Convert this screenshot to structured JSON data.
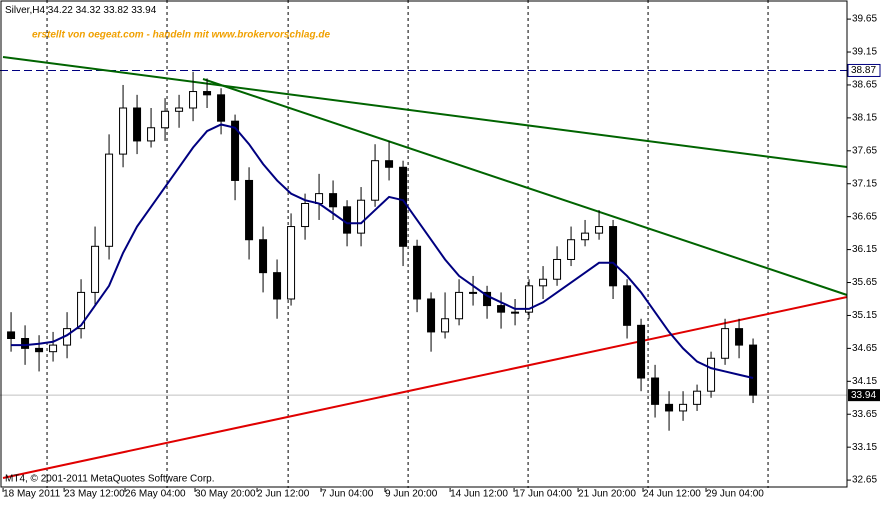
{
  "chart_data": {
    "type": "candlestick",
    "symbol": "Silver,H4",
    "header_ohlc": [
      34.22,
      34.32,
      33.82,
      33.94
    ],
    "annotation": "erstellt von oegeat.com - handeln mit www.brokervorschlag.de",
    "copyright": "MT4, © 2001-2011 MetaQuotes Software Corp.",
    "open": [
      34.9,
      34.8,
      34.65,
      34.6,
      34.7,
      34.95,
      35.5,
      36.2,
      37.6,
      38.3,
      37.8,
      38.0,
      38.25,
      38.3,
      38.55,
      38.5,
      38.1,
      37.2,
      36.3,
      35.8,
      35.4,
      36.5,
      36.85,
      37.0,
      36.8,
      36.4,
      36.9,
      37.5,
      37.4,
      36.2,
      35.4,
      34.9,
      35.1,
      35.5,
      35.5,
      35.3,
      35.2,
      35.2,
      35.6,
      35.7,
      36.0,
      36.3,
      36.4,
      36.5,
      35.6,
      35.0,
      34.2,
      33.8,
      33.7,
      33.8,
      34.0,
      34.5,
      34.95,
      34.7
    ],
    "high": [
      35.2,
      35.0,
      34.85,
      34.9,
      35.2,
      35.7,
      36.5,
      37.9,
      38.65,
      38.5,
      38.3,
      38.45,
      38.5,
      38.85,
      38.75,
      38.6,
      38.2,
      37.4,
      36.5,
      36.0,
      36.7,
      37.0,
      37.3,
      37.2,
      36.9,
      37.1,
      37.75,
      37.8,
      37.5,
      36.3,
      35.5,
      35.5,
      35.7,
      35.75,
      35.6,
      35.5,
      35.4,
      35.7,
      35.9,
      36.2,
      36.5,
      36.6,
      36.75,
      36.6,
      35.7,
      35.1,
      34.4,
      34.0,
      34.0,
      34.1,
      34.6,
      35.1,
      35.1,
      34.8
    ],
    "low": [
      34.6,
      34.4,
      34.3,
      34.45,
      34.5,
      34.8,
      35.3,
      36.0,
      37.4,
      37.6,
      37.7,
      37.8,
      38.0,
      38.1,
      38.3,
      37.9,
      36.9,
      36.0,
      35.5,
      35.1,
      35.3,
      36.3,
      36.6,
      36.6,
      36.2,
      36.2,
      36.8,
      37.2,
      35.9,
      35.2,
      34.6,
      34.8,
      35.0,
      35.3,
      35.1,
      34.95,
      35.0,
      35.1,
      35.4,
      35.6,
      35.9,
      36.2,
      36.3,
      35.4,
      34.8,
      34.0,
      33.6,
      33.4,
      33.55,
      33.7,
      33.9,
      34.4,
      34.5,
      33.82
    ],
    "close": [
      34.8,
      34.65,
      34.6,
      34.7,
      34.95,
      35.5,
      36.2,
      37.6,
      38.3,
      37.8,
      38.0,
      38.25,
      38.3,
      38.55,
      38.5,
      38.1,
      37.2,
      36.3,
      35.8,
      35.4,
      36.5,
      36.85,
      37.0,
      36.8,
      36.4,
      36.9,
      37.5,
      37.4,
      36.2,
      35.4,
      34.9,
      35.1,
      35.5,
      35.5,
      35.3,
      35.2,
      35.2,
      35.6,
      35.7,
      36.0,
      36.3,
      36.4,
      36.5,
      35.6,
      35.0,
      34.2,
      33.8,
      33.7,
      33.8,
      34.0,
      34.5,
      34.95,
      34.7,
      33.94
    ],
    "ma": {
      "color": "#000080",
      "values": [
        34.7,
        34.7,
        34.72,
        34.75,
        34.85,
        35.0,
        35.3,
        35.6,
        36.1,
        36.5,
        36.8,
        37.1,
        37.4,
        37.7,
        37.95,
        38.05,
        38.0,
        37.75,
        37.45,
        37.2,
        37.0,
        36.9,
        36.85,
        36.7,
        36.55,
        36.55,
        36.75,
        36.95,
        36.9,
        36.6,
        36.3,
        36.0,
        35.75,
        35.6,
        35.45,
        35.35,
        35.25,
        35.25,
        35.35,
        35.5,
        35.65,
        35.8,
        35.95,
        35.95,
        35.75,
        35.5,
        35.2,
        34.9,
        34.65,
        34.45,
        34.35,
        34.3,
        34.25,
        34.2
      ]
    },
    "hline": 38.87,
    "last_price": 33.94,
    "xlim": [
      -0.79,
      59.71
    ],
    "ylim": [
      32.53,
      39.94
    ],
    "yticks": [
      39.65,
      39.15,
      38.65,
      38.15,
      37.65,
      37.15,
      36.65,
      36.15,
      35.65,
      35.15,
      34.65,
      34.15,
      33.65,
      33.15,
      32.65
    ],
    "xticks": [
      {
        "value": -0.57,
        "label": "18 May 2011"
      },
      {
        "value": 3.79,
        "label": "23 May 12:00"
      },
      {
        "value": 8.14,
        "label": "26 May 04:00"
      },
      {
        "value": 13.14,
        "label": "30 May 20:00"
      },
      {
        "value": 17.57,
        "label": "2 Jun 12:00"
      },
      {
        "value": 22.14,
        "label": "7 Jun 04:00"
      },
      {
        "value": 26.71,
        "label": "9 Jun 20:00"
      },
      {
        "value": 31.36,
        "label": "14 Jun 12:00"
      },
      {
        "value": 35.93,
        "label": "17 Jun 04:00"
      },
      {
        "value": 40.5,
        "label": "21 Jun 20:00"
      },
      {
        "value": 45.14,
        "label": "24 Jun 12:00"
      },
      {
        "value": 49.64,
        "label": "29 Jun 04:00"
      }
    ],
    "vgrid": [
      2.57,
      11.14,
      19.79,
      28.36,
      36.93,
      45.5,
      54.07
    ]
  }
}
